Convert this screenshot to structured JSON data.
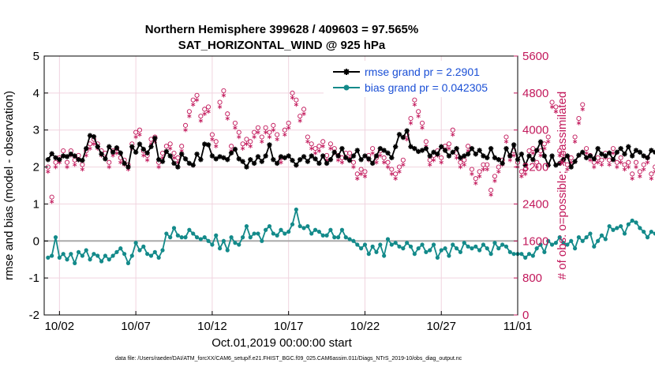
{
  "chart_data": {
    "type": "line",
    "title_line1": "Northern Hemisphere 399628 / 409603 = 97.565%",
    "title_line2": "SAT_HORIZONTAL_WIND @ 925 hPa",
    "ylabel_left": "rmse and bias (model - observation)",
    "ylabel_right": "# of obs: o=possible; ∗=assimilated",
    "xlabel": "Oct.01,2019 00:00:00 start",
    "footnote": "data file: /Users/raeder/DAI/ATM_forcXX/CAM6_setup/f.e21.FHIST_BGC.f09_025.CAM6assim.011/Diags_NTrS_2019-10/obs_diag_output.nc",
    "ylim_left": [
      -2,
      5
    ],
    "yticks_left": [
      "-2",
      "-1",
      "0",
      "1",
      "2",
      "3",
      "4",
      "5"
    ],
    "ylim_right": [
      0,
      5600
    ],
    "yticks_right": [
      "0",
      "800",
      "1600",
      "2400",
      "3200",
      "4000",
      "4800",
      "5600"
    ],
    "xlim_days": [
      0,
      31
    ],
    "xticks": [
      {
        "day": 1,
        "label": "10/02"
      },
      {
        "day": 6,
        "label": "10/07"
      },
      {
        "day": 11,
        "label": "10/12"
      },
      {
        "day": 16,
        "label": "10/17"
      },
      {
        "day": 21,
        "label": "10/22"
      },
      {
        "day": 26,
        "label": "10/27"
      },
      {
        "day": 31,
        "label": "11/01"
      }
    ],
    "legend": [
      {
        "name": "rmse grand pr = 2.2901",
        "color": "#000000"
      },
      {
        "name": "bias grand pr = 0.042305",
        "color": "#138a8a"
      }
    ],
    "series": [
      {
        "name": "rmse",
        "color": "#000000",
        "start_day": 0.25,
        "step_days": 0.25,
        "values": [
          2.2,
          2.36,
          2.25,
          2.2,
          2.3,
          2.28,
          2.35,
          2.3,
          2.2,
          2.18,
          2.5,
          2.85,
          2.82,
          2.55,
          2.35,
          2.22,
          2.55,
          2.4,
          2.52,
          2.38,
          2.1,
          2.0,
          2.55,
          2.4,
          2.62,
          2.48,
          2.38,
          2.55,
          2.78,
          2.2,
          2.15,
          2.42,
          2.3,
          2.1,
          2.0,
          2.35,
          2.22,
          2.1,
          2.05,
          2.35,
          2.2,
          2.62,
          2.6,
          2.3,
          2.22,
          2.28,
          2.25,
          2.2,
          2.38,
          2.48,
          2.22,
          2.15,
          2.0,
          2.2,
          2.1,
          2.28,
          2.15,
          2.3,
          2.6,
          2.2,
          2.1,
          2.28,
          2.25,
          2.3,
          2.18,
          2.05,
          2.2,
          2.28,
          2.15,
          2.3,
          2.22,
          2.1,
          2.3,
          2.1,
          2.2,
          2.4,
          2.3,
          2.5,
          2.25,
          2.18,
          2.3,
          2.45,
          2.2,
          2.3,
          2.22,
          2.1,
          2.3,
          2.5,
          2.45,
          2.38,
          2.25,
          2.55,
          2.88,
          2.8,
          2.98,
          2.55,
          2.5,
          2.42,
          2.45,
          2.5,
          2.3,
          2.4,
          2.35,
          2.55,
          2.45,
          2.3,
          2.4,
          2.5,
          2.25,
          2.3,
          2.35,
          2.5,
          2.35,
          2.45,
          2.3,
          2.25,
          2.5,
          2.25,
          2.2,
          2.1,
          2.5,
          2.3,
          2.6,
          2.2,
          2.35,
          2.05,
          2.3,
          2.2,
          2.45,
          2.68,
          2.3,
          2.05,
          2.3,
          2.05,
          2.1,
          2.2,
          2.3,
          2.0,
          2.15,
          2.32,
          2.4,
          2.25,
          2.3,
          2.22,
          2.5,
          2.35,
          2.3,
          2.38,
          2.2,
          2.4,
          2.5,
          2.35,
          2.55,
          2.3,
          2.45,
          2.4,
          2.3,
          2.25,
          2.45,
          2.4,
          2.35,
          2.3,
          2.5,
          2.35,
          2.2,
          2.4,
          2.3,
          2.25,
          2.32,
          2.4,
          2.5,
          2.2,
          2.3,
          2.35,
          2.28,
          2.22,
          2.4,
          2.3,
          2.5,
          2.45,
          2.22,
          2.3,
          2.35,
          2.2,
          2.1,
          2.3,
          2.2,
          2.35,
          2.5,
          2.45,
          2.25,
          2.35,
          2.4,
          2.28,
          2.35,
          2.3,
          2.15,
          2.3,
          2.22,
          2.1,
          2.2,
          2.4,
          2.2,
          2.35,
          2.25,
          2.3,
          2.2,
          2.22,
          2.45,
          2.5,
          2.4,
          2.3,
          2.45,
          2.6,
          2.45,
          2.72,
          2.9,
          2.75,
          2.6,
          2.5,
          2.2,
          2.1,
          2.75,
          2.3
        ]
      },
      {
        "name": "bias",
        "color": "#138a8a",
        "start_day": 0.25,
        "step_days": 0.25,
        "values": [
          -0.45,
          -0.4,
          0.1,
          -0.45,
          -0.35,
          -0.5,
          -0.35,
          -0.6,
          -0.3,
          -0.4,
          -0.25,
          -0.5,
          -0.35,
          -0.4,
          -0.55,
          -0.4,
          -0.5,
          -0.4,
          -0.3,
          -0.2,
          -0.35,
          -0.6,
          -0.4,
          -0.05,
          -0.25,
          -0.15,
          -0.35,
          -0.4,
          -0.3,
          -0.45,
          -0.25,
          0.2,
          0.1,
          0.35,
          0.15,
          0.1,
          0.1,
          0.3,
          0.2,
          0.1,
          0.05,
          0.1,
          0.0,
          -0.1,
          0.15,
          -0.2,
          0.0,
          -0.25,
          0.1,
          -0.05,
          -0.1,
          0.1,
          0.4,
          0.1,
          0.2,
          0.2,
          0.0,
          0.3,
          0.4,
          0.2,
          0.15,
          0.3,
          0.2,
          0.25,
          0.45,
          0.85,
          0.4,
          0.35,
          0.4,
          0.2,
          0.3,
          0.25,
          0.15,
          0.15,
          0.3,
          0.1,
          0.1,
          0.3,
          0.1,
          0.05,
          0.0,
          -0.1,
          -0.2,
          -0.1,
          -0.35,
          -0.15,
          -0.3,
          -0.1,
          -0.4,
          0.05,
          -0.1,
          -0.05,
          -0.15,
          -0.2,
          -0.05,
          -0.15,
          -0.35,
          -0.2,
          -0.1,
          -0.3,
          -0.25,
          -0.1,
          -0.45,
          -0.25,
          -0.2,
          -0.4,
          -0.1,
          -0.2,
          -0.3,
          -0.05,
          -0.15,
          -0.2,
          -0.15,
          -0.25,
          -0.1,
          -0.2,
          -0.35,
          -0.05,
          -0.2,
          -0.1,
          -0.15,
          -0.3,
          -0.35,
          -0.35,
          -0.35,
          -0.45,
          -0.35,
          -0.4,
          -0.2,
          -0.1,
          -0.3,
          0.0,
          -0.1,
          -0.05,
          0.1,
          -0.05,
          -0.1,
          0.0,
          -0.2,
          0.1,
          0.0,
          0.1,
          0.2,
          -0.15,
          0.0,
          0.15,
          0.05,
          0.4,
          0.3,
          0.35,
          0.4,
          0.2,
          0.45,
          0.55,
          0.5,
          0.35,
          0.25,
          0.1,
          0.25,
          0.2,
          0.35,
          0.0,
          0.15,
          0.1,
          0.05,
          0.3,
          0.15,
          0.45,
          0.6,
          0.4,
          0.2,
          0.15,
          0.3,
          0.2,
          0.1,
          0.05,
          0.15,
          0.2,
          0.1,
          -0.1,
          0.0,
          0.15,
          0.2,
          0.1,
          0.05,
          0.65,
          0.3,
          0.2,
          0.15,
          0.25,
          0.0,
          0.1,
          0.4,
          0.15,
          0.0,
          -0.05,
          0.2,
          0.15,
          0.1,
          0.4,
          0.25,
          0.3,
          0.1,
          0.25,
          0.2,
          0.35,
          0.4,
          0.25,
          0.5,
          0.6,
          0.35,
          0.2,
          0.15,
          0.25,
          0.2,
          0.3,
          0.1,
          0.35,
          0.2,
          0.4,
          0.1,
          0.25,
          0.1,
          0.4,
          0.35,
          0.45,
          0.15,
          0.25,
          0.4,
          0.15,
          0.1,
          0.2,
          0.1,
          0.45,
          0.2,
          0.3,
          0.05,
          0.0,
          -0.2,
          -0.1,
          -0.3,
          -0.5
        ]
      },
      {
        "name": "possible",
        "color": "#c2185b",
        "marker": "circle",
        "start_day": 0.25,
        "step_days": 0.25,
        "values": [
          3200,
          2550,
          3300,
          3400,
          3550,
          3300,
          3550,
          3350,
          3450,
          3250,
          3550,
          3700,
          3800,
          3700,
          3550,
          3500,
          3300,
          3550,
          3600,
          3400,
          3350,
          3250,
          3700,
          3950,
          4000,
          3550,
          3450,
          3800,
          3850,
          3300,
          3500,
          3650,
          3700,
          3500,
          3400,
          3650,
          4100,
          4400,
          4650,
          4750,
          4300,
          4450,
          4500,
          3900,
          3750,
          4600,
          4850,
          4350,
          3650,
          4150,
          3950,
          3700,
          3800,
          3750,
          3950,
          4050,
          3850,
          4050,
          3950,
          4100,
          3900,
          3400,
          4000,
          4150,
          4800,
          4650,
          4300,
          4450,
          3850,
          3700,
          3600,
          3650,
          3750,
          3450,
          3700,
          3600,
          3450,
          3400,
          3500,
          3500,
          3300,
          3050,
          3150,
          3100,
          3450,
          3600,
          3400,
          3550,
          3400,
          3300,
          3150,
          3050,
          3200,
          3350,
          3900,
          4250,
          4650,
          4400,
          4150,
          3750,
          3350,
          3450,
          3550,
          3400,
          3650,
          3700,
          4000,
          3500,
          3300,
          3350,
          3650,
          3150,
          2950,
          3100,
          3250,
          3250,
          2700,
          3000,
          3200,
          3350,
          3850,
          3450,
          3550,
          3300,
          3100,
          3150,
          3550,
          3600,
          3300,
          3550,
          3700,
          3850,
          4600,
          4500,
          3550,
          3500,
          3250,
          3400,
          3850,
          4250,
          4550,
          3600,
          3450,
          3300,
          3400,
          3350,
          3500,
          3350,
          3600,
          3300,
          3400,
          3250,
          3300,
          3050,
          3300,
          3100,
          3250,
          3400,
          3050,
          3200,
          3400,
          3100,
          3250,
          3300,
          2950,
          3050,
          3200,
          2950,
          2850,
          3200,
          3000,
          3100,
          2900,
          3250,
          3000,
          2950,
          2800,
          3150,
          2850,
          3050,
          2900,
          2800,
          2750,
          2950,
          2600,
          2750,
          3100,
          2600,
          2800,
          2650,
          2950,
          3000,
          2700,
          2850,
          2750,
          2650,
          2600,
          2800,
          2550,
          2500,
          2700,
          2650,
          2550,
          2400,
          2550,
          2350,
          2700,
          2500,
          2300,
          2450,
          2300,
          2600,
          2400,
          2250,
          2500,
          2350,
          2550,
          2800,
          4350,
          2650,
          2400,
          2250,
          2500,
          2350,
          2700,
          2450,
          2250,
          2300,
          2700,
          2550,
          2450,
          3200,
          3000,
          2950,
          2850,
          3100,
          3050,
          2950,
          3000,
          2950,
          2850
        ]
      },
      {
        "name": "assimilated",
        "color": "#c2185b",
        "marker": "asterisk",
        "start_day": 0.25,
        "step_days": 0.25,
        "values": [
          3100,
          2450,
          3200,
          3300,
          3450,
          3200,
          3450,
          3250,
          3350,
          3150,
          3450,
          3600,
          3700,
          3600,
          3450,
          3400,
          3200,
          3450,
          3500,
          3300,
          3250,
          3150,
          3600,
          3850,
          3900,
          3450,
          3350,
          3700,
          3750,
          3200,
          3400,
          3550,
          3600,
          3400,
          3300,
          3550,
          4000,
          4300,
          4550,
          4650,
          4200,
          4350,
          4400,
          3800,
          3650,
          4500,
          4750,
          4250,
          3550,
          4050,
          3850,
          3600,
          3700,
          3650,
          3850,
          3950,
          3750,
          3950,
          3850,
          4000,
          3800,
          3300,
          3900,
          4050,
          4700,
          4550,
          4200,
          4350,
          3750,
          3600,
          3500,
          3550,
          3650,
          3350,
          3600,
          3500,
          3350,
          3300,
          3400,
          3400,
          3200,
          2950,
          3050,
          3000,
          3350,
          3500,
          3300,
          3450,
          3300,
          3200,
          3050,
          2950,
          3100,
          3250,
          3800,
          4150,
          4550,
          4300,
          4050,
          3650,
          3250,
          3350,
          3450,
          3300,
          3550,
          3600,
          3900,
          3400,
          3200,
          3250,
          3550,
          3050,
          2850,
          3000,
          3150,
          3150,
          2600,
          2900,
          3100,
          3250,
          3750,
          3350,
          3450,
          3200,
          3000,
          3050,
          3450,
          3500,
          3200,
          3450,
          3600,
          3750,
          4500,
          4400,
          3450,
          3400,
          3150,
          3300,
          3750,
          4150,
          4450,
          3500,
          3350,
          3200,
          3300,
          3250,
          3400,
          3250,
          3500,
          3200,
          3300,
          3150,
          3200,
          2950,
          3200,
          3000,
          3150,
          3300,
          2950,
          3100,
          3300,
          3000,
          3150,
          3200,
          2850,
          2950,
          3100,
          2850,
          2750,
          3100,
          2900,
          3000,
          2800,
          3150,
          2900,
          2850,
          2700,
          3050,
          2750,
          2950,
          2800,
          2700,
          2650,
          2850,
          2500,
          2650,
          3000,
          2500,
          2700,
          2550,
          2850,
          2900,
          2600,
          2750,
          2650,
          2550,
          2500,
          2700,
          2450,
          2400,
          2600,
          2550,
          2450,
          2300,
          2450,
          2250,
          2600,
          2400,
          2200,
          2350,
          2200,
          2500,
          2300,
          2150,
          2400,
          2250,
          2450,
          2700,
          4250,
          2550,
          2300,
          2150,
          2400,
          2250,
          2600,
          2350,
          2150,
          2200,
          2600,
          2450,
          2350,
          3100,
          2900,
          2850,
          2750,
          3000,
          2950,
          2850,
          2900,
          2850,
          2750
        ]
      }
    ]
  }
}
